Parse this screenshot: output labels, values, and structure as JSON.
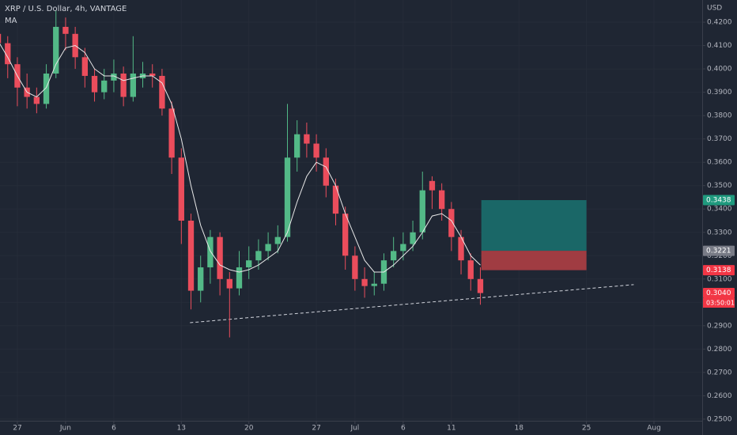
{
  "chart_data": {
    "type": "candlestick",
    "title": "XRP / U.S. Dollar, 4h, VANTAGE",
    "indicator": "MA",
    "currency": "USD",
    "up_color": "#53b987",
    "down_color": "#eb4d5c",
    "ma_color": "#e8e8e8",
    "grid": true,
    "xlim": [
      -1.8,
      71.0
    ],
    "ylim": [
      0.2493,
      0.4295
    ],
    "xticks": [
      {
        "value": 0,
        "label": "27"
      },
      {
        "value": 5,
        "label": "Jun"
      },
      {
        "value": 10,
        "label": "6"
      },
      {
        "value": 17,
        "label": "13"
      },
      {
        "value": 24,
        "label": "20"
      },
      {
        "value": 31,
        "label": "27"
      },
      {
        "value": 35,
        "label": "Jul"
      },
      {
        "value": 40,
        "label": "6"
      },
      {
        "value": 45,
        "label": "11"
      },
      {
        "value": 52,
        "label": "18"
      },
      {
        "value": 59,
        "label": "25"
      },
      {
        "value": 66,
        "label": "Aug"
      }
    ],
    "yticks": [
      {
        "value": 0.25,
        "label": "0.2500"
      },
      {
        "value": 0.26,
        "label": "0.2600"
      },
      {
        "value": 0.27,
        "label": "0.2700"
      },
      {
        "value": 0.28,
        "label": "0.2800"
      },
      {
        "value": 0.29,
        "label": "0.2900"
      },
      {
        "value": 0.3,
        "label": "0.3000"
      },
      {
        "value": 0.31,
        "label": "0.3100"
      },
      {
        "value": 0.32,
        "label": "0.3200"
      },
      {
        "value": 0.33,
        "label": "0.3300"
      },
      {
        "value": 0.34,
        "label": "0.3400"
      },
      {
        "value": 0.35,
        "label": "0.3500"
      },
      {
        "value": 0.36,
        "label": "0.3600"
      },
      {
        "value": 0.37,
        "label": "0.3700"
      },
      {
        "value": 0.38,
        "label": "0.3800"
      },
      {
        "value": 0.39,
        "label": "0.3900"
      },
      {
        "value": 0.4,
        "label": "0.4000"
      },
      {
        "value": 0.41,
        "label": "0.4100"
      },
      {
        "value": 0.42,
        "label": "0.4200"
      }
    ],
    "x": [
      -2,
      -1,
      0,
      1,
      2,
      3,
      4,
      5,
      6,
      7,
      8,
      9,
      10,
      11,
      12,
      13,
      14,
      15,
      16,
      17,
      18,
      19,
      20,
      21,
      22,
      23,
      24,
      25,
      26,
      27,
      28,
      29,
      30,
      31,
      32,
      33,
      34,
      35,
      36,
      37,
      38,
      39,
      40,
      41,
      42,
      43,
      44,
      45,
      46,
      47,
      48
    ],
    "open": [
      0.415,
      0.411,
      0.402,
      0.392,
      0.388,
      0.385,
      0.398,
      0.418,
      0.415,
      0.405,
      0.397,
      0.39,
      0.395,
      0.398,
      0.388,
      0.396,
      0.398,
      0.397,
      0.383,
      0.362,
      0.335,
      0.305,
      0.315,
      0.328,
      0.31,
      0.306,
      0.315,
      0.318,
      0.322,
      0.325,
      0.328,
      0.362,
      0.372,
      0.368,
      0.362,
      0.35,
      0.338,
      0.32,
      0.31,
      0.307,
      0.308,
      0.318,
      0.322,
      0.325,
      0.33,
      0.352,
      0.348,
      0.34,
      0.328,
      0.318,
      0.31
    ],
    "high": [
      0.418,
      0.414,
      0.405,
      0.398,
      0.392,
      0.402,
      0.425,
      0.422,
      0.418,
      0.409,
      0.4,
      0.4,
      0.404,
      0.401,
      0.414,
      0.403,
      0.402,
      0.4,
      0.386,
      0.366,
      0.338,
      0.32,
      0.331,
      0.33,
      0.313,
      0.322,
      0.324,
      0.327,
      0.33,
      0.333,
      0.385,
      0.378,
      0.377,
      0.372,
      0.366,
      0.353,
      0.341,
      0.324,
      0.315,
      0.313,
      0.321,
      0.328,
      0.33,
      0.335,
      0.356,
      0.354,
      0.351,
      0.343,
      0.331,
      0.321,
      0.315
    ],
    "low": [
      0.405,
      0.396,
      0.384,
      0.383,
      0.381,
      0.383,
      0.396,
      0.408,
      0.4,
      0.392,
      0.386,
      0.387,
      0.39,
      0.384,
      0.386,
      0.392,
      0.392,
      0.38,
      0.355,
      0.325,
      0.297,
      0.3,
      0.308,
      0.303,
      0.285,
      0.303,
      0.31,
      0.314,
      0.318,
      0.321,
      0.326,
      0.356,
      0.362,
      0.356,
      0.345,
      0.333,
      0.314,
      0.305,
      0.302,
      0.303,
      0.305,
      0.315,
      0.318,
      0.322,
      0.327,
      0.34,
      0.335,
      0.322,
      0.312,
      0.305,
      0.299
    ],
    "close": [
      0.411,
      0.402,
      0.392,
      0.388,
      0.385,
      0.398,
      0.418,
      0.415,
      0.405,
      0.397,
      0.39,
      0.395,
      0.398,
      0.388,
      0.398,
      0.398,
      0.397,
      0.383,
      0.362,
      0.335,
      0.305,
      0.315,
      0.328,
      0.31,
      0.306,
      0.315,
      0.318,
      0.322,
      0.325,
      0.328,
      0.362,
      0.372,
      0.368,
      0.362,
      0.35,
      0.338,
      0.32,
      0.31,
      0.307,
      0.308,
      0.318,
      0.322,
      0.325,
      0.33,
      0.348,
      0.348,
      0.34,
      0.328,
      0.318,
      0.31,
      0.304
    ],
    "ma": [
      0.412,
      0.405,
      0.397,
      0.39,
      0.388,
      0.392,
      0.402,
      0.409,
      0.41,
      0.407,
      0.4,
      0.397,
      0.397,
      0.395,
      0.396,
      0.397,
      0.397,
      0.394,
      0.385,
      0.37,
      0.35,
      0.333,
      0.322,
      0.316,
      0.314,
      0.313,
      0.314,
      0.316,
      0.319,
      0.322,
      0.33,
      0.343,
      0.354,
      0.36,
      0.358,
      0.35,
      0.338,
      0.328,
      0.318,
      0.313,
      0.313,
      0.316,
      0.32,
      0.324,
      0.33,
      0.337,
      0.338,
      0.335,
      0.328,
      0.32,
      0.316
    ],
    "trendline": {
      "x": [
        17.9,
        63.9
      ],
      "y": [
        0.2913,
        0.3076
      ]
    },
    "position": {
      "x": [
        48.1,
        59.0
      ],
      "target": 0.3438,
      "entry": 0.3221,
      "stop": 0.3138,
      "target_color": "#1a6767",
      "stop_color": "#a03c42"
    },
    "price_tags": [
      {
        "value": 0.3438,
        "label": "0.3438",
        "color": "#1f9a7e"
      },
      {
        "value": 0.3221,
        "label": "0.3221",
        "color": "#787b86"
      },
      {
        "value": 0.3138,
        "label": "0.3138",
        "color": "#f23645"
      },
      {
        "value": 0.304,
        "label": "0.3040",
        "color": "#f23645",
        "countdown": "03:50:01"
      }
    ]
  }
}
